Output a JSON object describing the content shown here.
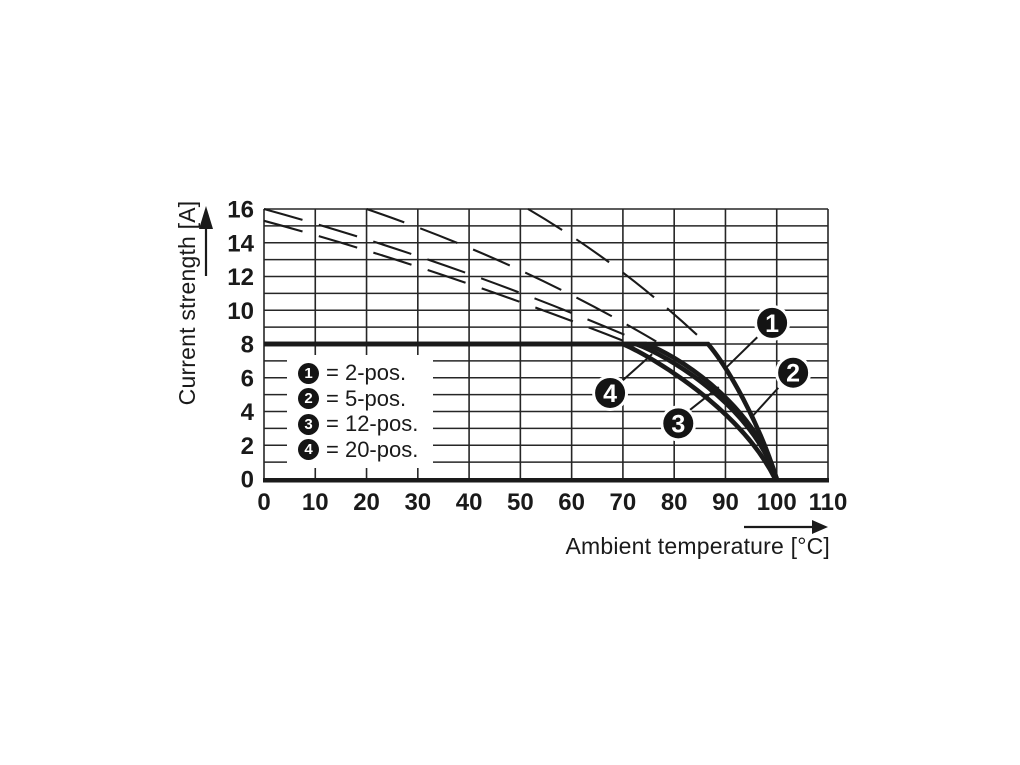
{
  "figure": {
    "background": "#ffffff",
    "ink": "#1a1a1a",
    "grid_color": "#262626",
    "legend_background": "#ffffff",
    "callout_fill": "#141414",
    "callout_text_color": "#ffffff"
  },
  "icons": {
    "y_axis_arrow": "up-arrow",
    "x_axis_arrow": "right-arrow"
  },
  "legend": {
    "items": [
      {
        "marker": "1",
        "label": "= 2-pos."
      },
      {
        "marker": "2",
        "label": "= 5-pos."
      },
      {
        "marker": "3",
        "label": "= 12-pos."
      },
      {
        "marker": "4",
        "label": "= 20-pos."
      }
    ]
  },
  "chart_data": {
    "type": "line",
    "title": "",
    "xlabel": "Ambient temperature [°C]",
    "ylabel": "Current strength [A]",
    "xlim": [
      0,
      110
    ],
    "ylim": [
      0,
      16
    ],
    "x_ticks": [
      0,
      10,
      20,
      30,
      40,
      50,
      60,
      70,
      80,
      90,
      100,
      110
    ],
    "y_ticks": [
      0,
      2,
      4,
      6,
      8,
      10,
      12,
      14,
      16
    ],
    "grid": {
      "on": true,
      "x_step": 10,
      "y_step": 1
    },
    "legend_position": "inside-left",
    "description": "Derating curves: current limited to 8 A, falling to 0 A at 100 °C ambient temperature; dashed guides show the unclipped derating lines above 8 A.",
    "series": [
      {
        "name": "2-pos.",
        "marker": "1",
        "style": "solid",
        "flat_value": 8,
        "flat_from": 0,
        "flat_to": 86.6,
        "drop_c1": [
          90.5,
          6.6
        ],
        "drop_c2": [
          96.5,
          3.4
        ],
        "end": [
          100,
          0
        ]
      },
      {
        "name": "5-pos.",
        "marker": "2",
        "style": "solid",
        "flat_value": 8,
        "flat_from": 0,
        "flat_to": 74.5,
        "drop_c1": [
          80,
          7.4
        ],
        "drop_c2": [
          95.5,
          4.6
        ],
        "end": [
          100,
          0
        ]
      },
      {
        "name": "12-pos.",
        "marker": "3",
        "style": "solid",
        "flat_value": 8,
        "flat_from": 0,
        "flat_to": 72.5,
        "drop_c1": [
          78.5,
          7.35
        ],
        "drop_c2": [
          95,
          4.45
        ],
        "end": [
          100,
          0
        ]
      },
      {
        "name": "20-pos.",
        "marker": "4",
        "style": "solid",
        "flat_value": 8,
        "flat_from": 0,
        "flat_to": 70,
        "drop_c1": [
          76,
          7.2
        ],
        "drop_c2": [
          93,
          4.1
        ],
        "end": [
          99.7,
          0
        ]
      }
    ],
    "dashed_guides": [
      {
        "for": "2-pos.",
        "from": [
          51.5,
          16
        ],
        "ctrl": [
          70,
          12.7
        ],
        "to": [
          86,
          8.1
        ]
      },
      {
        "for": "5-pos.",
        "from": [
          20,
          16
        ],
        "ctrl": [
          50,
          12.9
        ],
        "to": [
          76.5,
          8.15
        ]
      },
      {
        "for": "12-pos.",
        "from": [
          0,
          16
        ],
        "ctrl": [
          37,
          12.9
        ],
        "to": [
          73,
          8.2
        ]
      },
      {
        "for": "20-pos.",
        "from": [
          0,
          15.3
        ],
        "ctrl": [
          33,
          12.6
        ],
        "to": [
          70,
          8.2
        ]
      }
    ],
    "annotations": [
      {
        "label": "1",
        "series": "2-pos.",
        "cx": 99.1,
        "cy": 9.25,
        "leader": [
          [
            96.2,
            8.4
          ],
          [
            90.3,
            6.65
          ]
        ]
      },
      {
        "label": "2",
        "series": "5-pos.",
        "cx": 103.2,
        "cy": 6.3,
        "leader": [
          [
            100.3,
            5.4
          ],
          [
            94.9,
            3.6
          ]
        ]
      },
      {
        "label": "3",
        "series": "12-pos.",
        "cx": 80.8,
        "cy": 3.3,
        "leader": [
          [
            83.1,
            4.1
          ],
          [
            88.7,
            5.45
          ]
        ]
      },
      {
        "label": "4",
        "series": "20-pos.",
        "cx": 67.5,
        "cy": 5.1,
        "leader": [
          [
            69.8,
            5.8
          ],
          [
            75.7,
            7.4
          ]
        ]
      }
    ]
  }
}
